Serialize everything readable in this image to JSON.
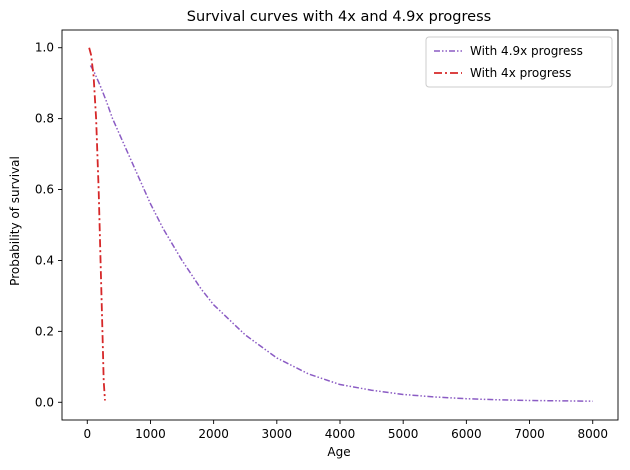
{
  "chart_data": {
    "type": "line",
    "title": "Survival curves with 4x and 4.9x progress",
    "xlabel": "Age",
    "ylabel": "Probability of survival",
    "xlim": [
      -400,
      8400
    ],
    "ylim": [
      -0.05,
      1.05
    ],
    "xticks": [
      0,
      1000,
      2000,
      3000,
      4000,
      5000,
      6000,
      7000,
      8000
    ],
    "xtick_labels": [
      "0",
      "1000",
      "2000",
      "3000",
      "4000",
      "5000",
      "6000",
      "7000",
      "8000"
    ],
    "yticks": [
      0.0,
      0.2,
      0.4,
      0.6,
      0.8,
      1.0
    ],
    "ytick_labels": [
      "0.0",
      "0.2",
      "0.4",
      "0.6",
      "0.8",
      "1.0"
    ],
    "grid": false,
    "legend_position": "top-right",
    "series": [
      {
        "name": "With 4.9x progress",
        "color": "#8b5cc4",
        "style": "dash-dot-dot",
        "x": [
          50,
          100,
          150,
          200,
          300,
          400,
          500,
          600,
          800,
          1000,
          1200,
          1500,
          1800,
          2000,
          2500,
          3000,
          3500,
          4000,
          4500,
          5000,
          5500,
          6000,
          6500,
          7000,
          7500,
          8000
        ],
        "y": [
          0.95,
          0.935,
          0.915,
          0.895,
          0.85,
          0.8,
          0.76,
          0.72,
          0.64,
          0.56,
          0.49,
          0.4,
          0.32,
          0.275,
          0.19,
          0.125,
          0.08,
          0.05,
          0.034,
          0.022,
          0.015,
          0.01,
          0.007,
          0.005,
          0.004,
          0.003
        ]
      },
      {
        "name": "With 4x progress",
        "color": "#d62728",
        "style": "dash-dot",
        "x": [
          30,
          60,
          100,
          140,
          180,
          210,
          240,
          260,
          280
        ],
        "y": [
          1.0,
          0.98,
          0.92,
          0.8,
          0.6,
          0.4,
          0.2,
          0.06,
          0.005
        ]
      }
    ]
  }
}
